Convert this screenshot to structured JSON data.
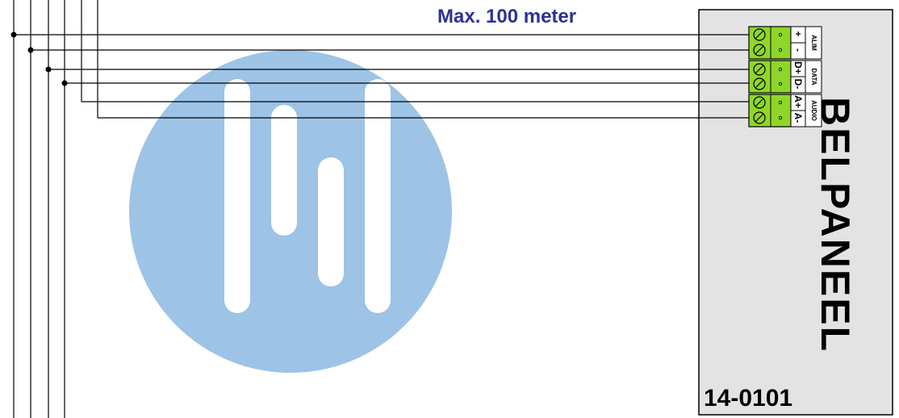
{
  "distance_label": "Max. 100 meter",
  "panel": {
    "name": "BELPANEEL",
    "model": "14-0101"
  },
  "terminal_groups": [
    {
      "label": "ALIM",
      "pins": [
        "+",
        "-"
      ]
    },
    {
      "label": "DATA",
      "pins": [
        "D+",
        "D-"
      ]
    },
    {
      "label": "AUDIO",
      "pins": [
        "A+",
        "A-"
      ]
    }
  ],
  "colors": {
    "text_blue": "#2e3192",
    "panel_fill": "#e3e3e3",
    "terminal_green": "#8fd629",
    "watermark": "#9dc3e6",
    "wire": "#000000"
  }
}
